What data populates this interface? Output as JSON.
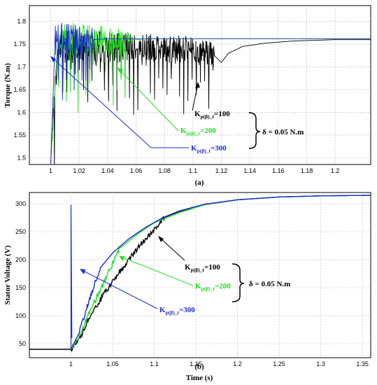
{
  "chart_data": [
    {
      "type": "line",
      "panel_label": "(a)",
      "xlabel": "",
      "ylabel": "Torque (N.m)",
      "xlim": [
        0.985,
        1.225
      ],
      "ylim": [
        1.485,
        1.835
      ],
      "xticks": [
        "1",
        "1.02",
        "1.04",
        "1.06",
        "1.08",
        "1.1",
        "1.12",
        "1.14",
        "1.16",
        "1.18",
        "1.2"
      ],
      "yticks": [
        "1.5",
        "1.55",
        "1.6",
        "1.65",
        "1.7",
        "1.75",
        "1.8"
      ],
      "grid": true,
      "series": [
        {
          "name": "Kp(β)_t=100",
          "color": "#000000",
          "x": [
            0.985,
            1.0,
            1.005,
            1.03,
            1.06,
            1.09,
            1.11,
            1.115,
            1.12,
            1.125,
            1.135,
            1.15,
            1.17,
            1.2,
            1.225
          ],
          "y": [
            1.485,
            1.485,
            1.74,
            1.745,
            1.74,
            1.74,
            1.73,
            1.725,
            1.71,
            1.73,
            1.745,
            1.752,
            1.757,
            1.76,
            1.76
          ]
        },
        {
          "name": "Kp(β)_t=200",
          "color": "#22dd22",
          "x": [
            1.0,
            1.005,
            1.03,
            1.05,
            1.06,
            1.07,
            1.1,
            1.225
          ],
          "y": [
            1.485,
            1.76,
            1.76,
            1.755,
            1.76,
            1.762,
            1.762,
            1.762
          ]
        },
        {
          "name": "Kp(β)_t=300",
          "color": "#1a2ecc",
          "x": [
            1.0,
            1.003,
            1.02,
            1.03,
            1.04,
            1.06,
            1.1,
            1.225
          ],
          "y": [
            1.485,
            1.76,
            1.76,
            1.76,
            1.762,
            1.762,
            1.762,
            1.762
          ]
        }
      ],
      "annotations": {
        "k100": {
          "main": "K",
          "sub": "p(β)_t",
          "rest": "=100",
          "color": "#000000"
        },
        "k200": {
          "main": "K",
          "sub": "p(β)_t",
          "rest": "=200",
          "color": "#22dd22"
        },
        "k300": {
          "main": "K",
          "sub": "p(β)_t",
          "rest": "=300",
          "color": "#1a2ecc"
        },
        "delta": "δ = 0.05 N.m"
      }
    },
    {
      "type": "line",
      "panel_label": "(b)",
      "xlabel": "Time (s)",
      "ylabel": "Stator Voltage (V)",
      "xlim": [
        0.95,
        1.36
      ],
      "ylim": [
        25,
        320
      ],
      "xticks": [
        "1",
        "1.05",
        "1.1",
        "1.15",
        "1.2",
        "1.25",
        "1.3",
        "1.35"
      ],
      "yticks": [
        "50",
        "100",
        "150",
        "200",
        "250",
        "300"
      ],
      "grid": true,
      "series": [
        {
          "name": "Kp(β)_t=100",
          "color": "#000000",
          "x": [
            0.95,
            1.0,
            1.01,
            1.02,
            1.04,
            1.06,
            1.08,
            1.1,
            1.113,
            1.13,
            1.16,
            1.2,
            1.25,
            1.3,
            1.36
          ],
          "y": [
            40,
            40,
            58,
            90,
            140,
            182,
            220,
            255,
            276,
            286,
            298,
            307,
            312,
            314,
            315
          ]
        },
        {
          "name": "Kp(β)_t=200",
          "color": "#22dd22",
          "x": [
            1.0,
            1.01,
            1.02,
            1.04,
            1.058,
            1.08,
            1.1,
            1.13,
            1.16,
            1.2,
            1.25,
            1.3,
            1.36
          ],
          "y": [
            40,
            62,
            100,
            160,
            220,
            246,
            266,
            284,
            298,
            307,
            312,
            314,
            315
          ]
        },
        {
          "name": "Kp(β)_t=300",
          "color": "#1a2ecc",
          "x": [
            1.0,
            1.01,
            1.02,
            1.035,
            1.05,
            1.07,
            1.09,
            1.11,
            1.13,
            1.16,
            1.2,
            1.25,
            1.3,
            1.36
          ],
          "y": [
            40,
            70,
            120,
            185,
            212,
            238,
            258,
            275,
            287,
            299,
            307,
            312,
            314,
            315
          ]
        }
      ],
      "annotations": {
        "k100": {
          "main": "K",
          "sub": "p(β)_t",
          "rest": "=100",
          "color": "#000000"
        },
        "k200": {
          "main": "K",
          "sub": "p(β)_t",
          "rest": "=200",
          "color": "#22dd22"
        },
        "k300": {
          "main": "K",
          "sub": "p(β)_t",
          "rest": "=300",
          "color": "#1a2ecc"
        },
        "delta": "δ = 0.05 N.m"
      }
    }
  ]
}
